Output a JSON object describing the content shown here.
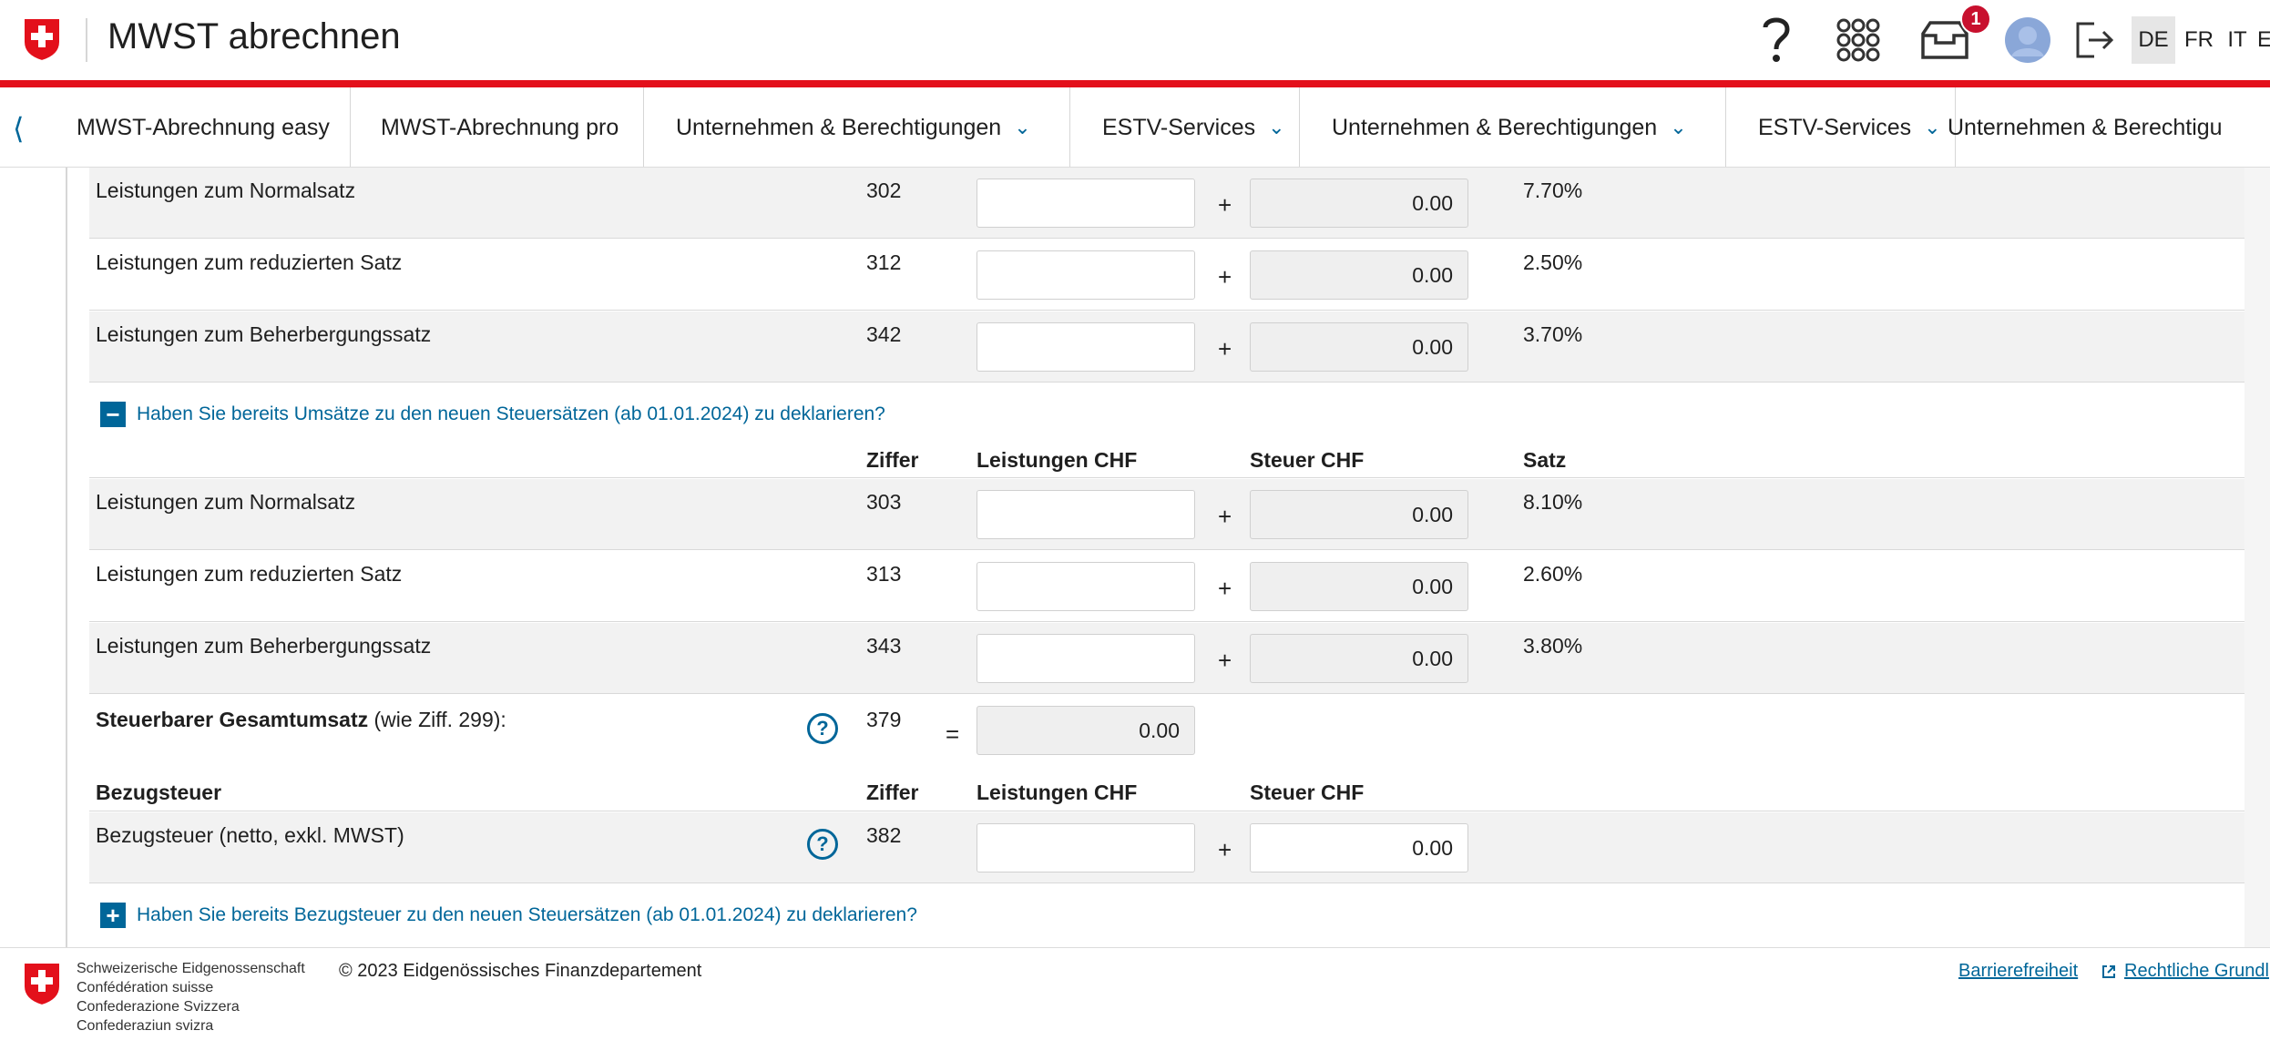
{
  "header": {
    "title": "MWST abrechnen",
    "help_icon": "question-mark",
    "notification_count": "1",
    "languages": [
      "DE",
      "FR",
      "IT",
      "E"
    ],
    "active_language": "DE"
  },
  "nav": {
    "items": [
      {
        "label": "MWST-Abrechnung easy",
        "dropdown": false
      },
      {
        "label": "MWST-Abrechnung pro",
        "dropdown": false
      },
      {
        "label": "Unternehmen & Berechtigungen",
        "dropdown": true
      },
      {
        "label": "ESTV-Services",
        "dropdown": true
      },
      {
        "label": "Unternehmen & Berechtigungen",
        "dropdown": true
      },
      {
        "label": "ESTV-Services",
        "dropdown": true
      },
      {
        "label": "Unternehmen & Berechtigu",
        "dropdown": false
      }
    ]
  },
  "section_old_rates": {
    "rows": [
      {
        "label": "Leistungen zum Normalsatz",
        "ziffer": "302",
        "tax": "0.00",
        "rate": "7.70%"
      },
      {
        "label": "Leistungen zum reduzierten Satz",
        "ziffer": "312",
        "tax": "0.00",
        "rate": "2.50%"
      },
      {
        "label": "Leistungen zum Beherbergungssatz",
        "ziffer": "342",
        "tax": "0.00",
        "rate": "3.70%"
      }
    ]
  },
  "toggle_new_rates": {
    "label": "Haben Sie bereits Umsätze zu den neuen Steuersätzen (ab 01.01.2024) zu deklarieren?",
    "state": "expanded",
    "symbol": "−"
  },
  "section_new_rates": {
    "headers": {
      "ziffer": "Ziffer",
      "leistungen": "Leistungen CHF",
      "steuer": "Steuer CHF",
      "satz": "Satz"
    },
    "rows": [
      {
        "label": "Leistungen zum Normalsatz",
        "ziffer": "303",
        "tax": "0.00",
        "rate": "8.10%"
      },
      {
        "label": "Leistungen zum reduzierten Satz",
        "ziffer": "313",
        "tax": "0.00",
        "rate": "2.60%"
      },
      {
        "label": "Leistungen zum Beherbergungssatz",
        "ziffer": "343",
        "tax": "0.00",
        "rate": "3.80%"
      }
    ]
  },
  "total": {
    "label_bold": "Steuerbarer Gesamtumsatz",
    "label_rest": " (wie Ziff. 299):",
    "ziffer": "379",
    "value": "0.00"
  },
  "bezugsteuer": {
    "headers": {
      "title": "Bezugsteuer",
      "ziffer": "Ziffer",
      "leistungen": "Leistungen CHF",
      "steuer": "Steuer CHF"
    },
    "row": {
      "label": "Bezugsteuer (netto, exkl. MWST)",
      "ziffer": "382",
      "tax": "0.00"
    }
  },
  "toggle_bezugsteuer": {
    "label": "Haben Sie bereits Bezugsteuer zu den neuen Steuersätzen (ab 01.01.2024) zu deklarieren?",
    "state": "collapsed",
    "symbol": "+"
  },
  "operators": {
    "plus": "+",
    "equals": "="
  },
  "footer": {
    "confederation": [
      "Schweizerische Eidgenossenschaft",
      "Confédération suisse",
      "Confederazione Svizzera",
      "Confederaziun svizra"
    ],
    "copyright": "© 2023 Eidgenössisches Finanzdepartement",
    "links": [
      "Barrierefreiheit",
      "Rechtliche Grundl"
    ]
  },
  "colors": {
    "brand_red": "#e3101b",
    "link_blue": "#006699",
    "badge_red": "#c8102e"
  }
}
